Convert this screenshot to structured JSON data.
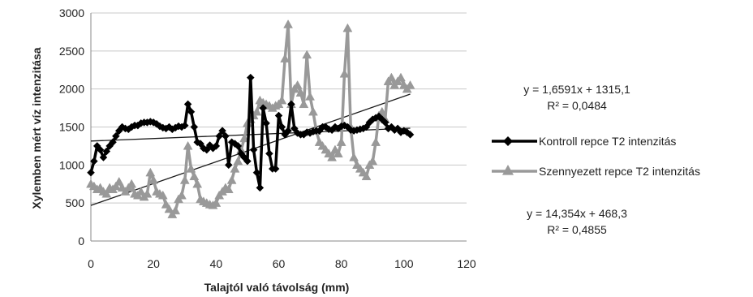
{
  "chart_data": {
    "type": "line",
    "title": "",
    "xlabel": "Talajtól való távolság (mm)",
    "ylabel": "Xylemben mért víz intenzitása",
    "xlim": [
      0,
      120
    ],
    "ylim": [
      0,
      3000
    ],
    "xticks": [
      "0",
      "20",
      "40",
      "60",
      "80",
      "100",
      "120"
    ],
    "yticks": [
      "0",
      "500",
      "1000",
      "1500",
      "2000",
      "2500",
      "3000"
    ],
    "grid": "horizontal",
    "legend_position": "right",
    "colors": {
      "kontroll": "#000000",
      "szennyezett": "#999999",
      "trend": "#1a1a1a"
    },
    "series": [
      {
        "name": "Kontroll repce T2 intenzitás",
        "marker": "diamond",
        "x": [
          0,
          1,
          2,
          3,
          4,
          5,
          6,
          7,
          8,
          9,
          10,
          11,
          12,
          13,
          14,
          15,
          16,
          17,
          18,
          19,
          20,
          21,
          22,
          23,
          24,
          25,
          26,
          27,
          28,
          29,
          30,
          31,
          32,
          33,
          34,
          35,
          36,
          37,
          38,
          39,
          40,
          41,
          42,
          43,
          44,
          45,
          46,
          47,
          48,
          49,
          50,
          51,
          52,
          53,
          54,
          55,
          56,
          57,
          58,
          59,
          60,
          61,
          62,
          63,
          64,
          65,
          66,
          67,
          68,
          69,
          70,
          71,
          72,
          73,
          74,
          75,
          76,
          77,
          78,
          79,
          80,
          81,
          82,
          83,
          84,
          85,
          86,
          87,
          88,
          89,
          90,
          91,
          92,
          93,
          94,
          95,
          96,
          97,
          98,
          99,
          100,
          101,
          102
        ],
        "y": [
          900,
          1050,
          1250,
          1200,
          1100,
          1180,
          1250,
          1300,
          1380,
          1450,
          1500,
          1480,
          1470,
          1500,
          1520,
          1520,
          1550,
          1560,
          1560,
          1570,
          1560,
          1540,
          1510,
          1490,
          1480,
          1500,
          1470,
          1490,
          1510,
          1500,
          1520,
          1800,
          1700,
          1500,
          1300,
          1280,
          1220,
          1200,
          1260,
          1220,
          1250,
          1380,
          1450,
          1380,
          1000,
          1300,
          1280,
          1250,
          1150,
          1100,
          1050,
          2150,
          1200,
          900,
          700,
          1750,
          1550,
          1150,
          950,
          950,
          1650,
          1500,
          1400,
          1450,
          1800,
          1480,
          1420,
          1400,
          1400,
          1430,
          1420,
          1440,
          1450,
          1450,
          1500,
          1500,
          1470,
          1460,
          1500,
          1480,
          1510,
          1520,
          1500,
          1460,
          1450,
          1460,
          1470,
          1480,
          1500,
          1560,
          1600,
          1620,
          1640,
          1600,
          1560,
          1480,
          1500,
          1460,
          1480,
          1430,
          1450,
          1430,
          1400
        ]
      },
      {
        "name": "Szennyezett repce T2 intenzitás",
        "marker": "triangle",
        "x": [
          0,
          1,
          2,
          3,
          4,
          5,
          6,
          7,
          8,
          9,
          10,
          11,
          12,
          13,
          14,
          15,
          16,
          17,
          18,
          19,
          20,
          21,
          22,
          23,
          24,
          25,
          26,
          27,
          28,
          29,
          30,
          31,
          32,
          33,
          34,
          35,
          36,
          37,
          38,
          39,
          40,
          41,
          42,
          43,
          44,
          45,
          46,
          47,
          48,
          49,
          50,
          51,
          52,
          53,
          54,
          55,
          56,
          57,
          58,
          59,
          60,
          61,
          62,
          63,
          64,
          65,
          66,
          67,
          68,
          69,
          70,
          71,
          72,
          73,
          74,
          75,
          76,
          77,
          78,
          79,
          80,
          81,
          82,
          83,
          84,
          85,
          86,
          87,
          88,
          89,
          90,
          91,
          92,
          93,
          94,
          95,
          96,
          97,
          98,
          99,
          100,
          101,
          102
        ],
        "y": [
          750,
          720,
          680,
          700,
          650,
          620,
          700,
          680,
          720,
          780,
          700,
          650,
          700,
          750,
          620,
          600,
          650,
          580,
          620,
          900,
          800,
          650,
          620,
          600,
          480,
          420,
          350,
          400,
          550,
          600,
          800,
          1250,
          950,
          850,
          750,
          550,
          520,
          500,
          480,
          470,
          500,
          600,
          650,
          700,
          680,
          800,
          950,
          1050,
          1200,
          1350,
          1550,
          1600,
          1650,
          1700,
          1850,
          1820,
          1800,
          1780,
          1750,
          1780,
          1800,
          1850,
          2400,
          2850,
          1800,
          2000,
          2050,
          1950,
          1800,
          2450,
          1900,
          1700,
          1450,
          1300,
          1250,
          1200,
          1150,
          1100,
          1200,
          1150,
          1300,
          2200,
          2800,
          1500,
          1100,
          1000,
          950,
          900,
          850,
          1000,
          1050,
          1300,
          1650,
          1700,
          1600,
          2100,
          2150,
          2050,
          2100,
          2150,
          2050,
          2000,
          2050
        ]
      }
    ],
    "trendlines": [
      {
        "series": "Kontroll repce T2 intenzitás",
        "equation": "y = 1,6591x + 1315,1",
        "r2": "R² = 0,0484",
        "slope": 1.6591,
        "intercept": 1315.1
      },
      {
        "series": "Szennyezett repce T2 intenzitás",
        "equation": "y = 14,354x + 468,3",
        "r2": "R² = 0,4855",
        "slope": 14.354,
        "intercept": 468.3
      }
    ]
  }
}
